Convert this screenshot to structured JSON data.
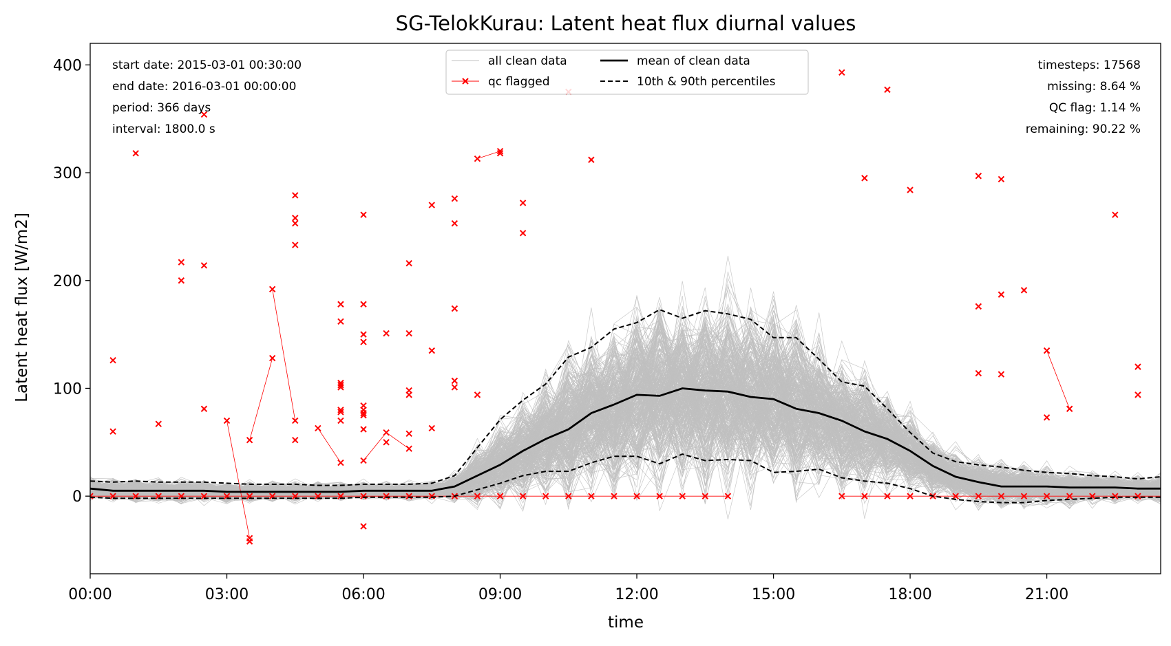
{
  "chart_data": {
    "type": "line",
    "title": "SG-TelokKurau: Latent heat flux diurnal values",
    "xlabel": "time",
    "ylabel": "Latent heat flux [W/m2]",
    "xlim_hours": [
      0,
      23.5
    ],
    "ylim": [
      -72,
      420
    ],
    "x_ticks": [
      {
        "hour": 0,
        "label": "00:00"
      },
      {
        "hour": 3,
        "label": "03:00"
      },
      {
        "hour": 6,
        "label": "06:00"
      },
      {
        "hour": 9,
        "label": "09:00"
      },
      {
        "hour": 12,
        "label": "12:00"
      },
      {
        "hour": 15,
        "label": "15:00"
      },
      {
        "hour": 18,
        "label": "18:00"
      },
      {
        "hour": 21,
        "label": "21:00"
      }
    ],
    "y_ticks": [
      0,
      100,
      200,
      300,
      400
    ],
    "grid": false,
    "legend_placement": "top-center",
    "legend": [
      {
        "label": "all clean data",
        "style": "thin-grey"
      },
      {
        "label": "mean of clean data",
        "style": "solid-black"
      },
      {
        "label": "qc flagged",
        "style": "red-x"
      },
      {
        "label": "10th & 90th percentiles",
        "style": "dashed-black"
      }
    ],
    "info_left": [
      "start date: 2015-03-01 00:30:00",
      "end date: 2016-03-01 00:00:00",
      "period: 366 days",
      "interval: 1800.0 s"
    ],
    "info_right": [
      "timesteps: 17568",
      "missing: 8.64 %",
      "QC flag: 1.14 %",
      "remaining: 90.22 %"
    ],
    "x_hours": [
      0,
      0.5,
      1,
      1.5,
      2,
      2.5,
      3,
      3.5,
      4,
      4.5,
      5,
      5.5,
      6,
      6.5,
      7,
      7.5,
      8,
      8.5,
      9,
      9.5,
      10,
      10.5,
      11,
      11.5,
      12,
      12.5,
      13,
      13.5,
      14,
      14.5,
      15,
      15.5,
      16,
      16.5,
      17,
      17.5,
      18,
      18.5,
      19,
      19.5,
      20,
      20.5,
      21,
      21.5,
      22,
      22.5,
      23,
      23.5
    ],
    "series": [
      {
        "name": "mean of clean data",
        "values": [
          7,
          5,
          5,
          5,
          5,
          5,
          4,
          4,
          4,
          4,
          4,
          4,
          5,
          5,
          5,
          5,
          9,
          19,
          29,
          42,
          53,
          62,
          77,
          85,
          94,
          93,
          100,
          98,
          97,
          92,
          90,
          81,
          77,
          70,
          60,
          53,
          42,
          28,
          18,
          13,
          9,
          9,
          9,
          8,
          8,
          8,
          7,
          7
        ]
      },
      {
        "name": "10th percentile",
        "values": [
          -1,
          -2,
          -2,
          -2,
          -2,
          -2,
          -2,
          -2,
          -2,
          -2,
          -2,
          -2,
          -1,
          -1,
          -1,
          -1,
          0,
          6,
          12,
          19,
          23,
          23,
          31,
          37,
          37,
          30,
          39,
          33,
          34,
          33,
          22,
          23,
          25,
          17,
          14,
          12,
          7,
          0,
          -3,
          -5,
          -6,
          -6,
          -4,
          -3,
          -2,
          -1,
          -1,
          -1
        ]
      },
      {
        "name": "90th percentile",
        "values": [
          14,
          13,
          14,
          13,
          13,
          13,
          12,
          11,
          11,
          11,
          10,
          10,
          11,
          11,
          11,
          12,
          19,
          45,
          71,
          89,
          104,
          129,
          138,
          155,
          161,
          173,
          165,
          172,
          169,
          164,
          147,
          147,
          127,
          106,
          102,
          81,
          59,
          40,
          32,
          29,
          27,
          24,
          22,
          21,
          19,
          18,
          16,
          18
        ]
      }
    ],
    "qc_flagged_points": [
      [
        0,
        0
      ],
      [
        0.5,
        0
      ],
      [
        1,
        0
      ],
      [
        1.5,
        0
      ],
      [
        2,
        0
      ],
      [
        2.5,
        0
      ],
      [
        3,
        0
      ],
      [
        3.5,
        0
      ],
      [
        4,
        0
      ],
      [
        4.5,
        0
      ],
      [
        5,
        0
      ],
      [
        5.5,
        0
      ],
      [
        6,
        0
      ],
      [
        6.5,
        0
      ],
      [
        7,
        0
      ],
      [
        7.5,
        0
      ],
      [
        8,
        0
      ],
      [
        8.5,
        0
      ],
      [
        9,
        0
      ],
      [
        9.5,
        0
      ],
      [
        10,
        0
      ],
      [
        10.5,
        0
      ],
      [
        11,
        0
      ],
      [
        11.5,
        0
      ],
      [
        12,
        0
      ],
      [
        12.5,
        0
      ],
      [
        13,
        0
      ],
      [
        13.5,
        0
      ],
      [
        14,
        0
      ],
      [
        16.5,
        0
      ],
      [
        17,
        0
      ],
      [
        17.5,
        0
      ],
      [
        18,
        0
      ],
      [
        18.5,
        0
      ],
      [
        19,
        0
      ],
      [
        19.5,
        0
      ],
      [
        20,
        0
      ],
      [
        20.5,
        0
      ],
      [
        21,
        0
      ],
      [
        21.5,
        0
      ],
      [
        22,
        0
      ],
      [
        22.5,
        0
      ],
      [
        23,
        0
      ],
      [
        0.5,
        126
      ],
      [
        0.5,
        60
      ],
      [
        1,
        318
      ],
      [
        1.5,
        67
      ],
      [
        2,
        217
      ],
      [
        2,
        200
      ],
      [
        2.5,
        354
      ],
      [
        2.5,
        214
      ],
      [
        2.5,
        81
      ],
      [
        3,
        70
      ],
      [
        3.5,
        52
      ],
      [
        3.5,
        -39
      ],
      [
        3.5,
        -42
      ],
      [
        4,
        192
      ],
      [
        4,
        128
      ],
      [
        4.5,
        279
      ],
      [
        4.5,
        258
      ],
      [
        4.5,
        253
      ],
      [
        4.5,
        233
      ],
      [
        4.5,
        70
      ],
      [
        4.5,
        52
      ],
      [
        5,
        63
      ],
      [
        5.5,
        178
      ],
      [
        5.5,
        162
      ],
      [
        5.5,
        105
      ],
      [
        5.5,
        103
      ],
      [
        5.5,
        101
      ],
      [
        5.5,
        80
      ],
      [
        5.5,
        78
      ],
      [
        5.5,
        70
      ],
      [
        5.5,
        31
      ],
      [
        6,
        261
      ],
      [
        6,
        178
      ],
      [
        6,
        150
      ],
      [
        6,
        143
      ],
      [
        6,
        84
      ],
      [
        6,
        80
      ],
      [
        6,
        77
      ],
      [
        6,
        75
      ],
      [
        6,
        62
      ],
      [
        6,
        33
      ],
      [
        6,
        -28
      ],
      [
        6.5,
        151
      ],
      [
        6.5,
        59
      ],
      [
        6.5,
        50
      ],
      [
        7,
        216
      ],
      [
        7,
        151
      ],
      [
        7,
        98
      ],
      [
        7,
        94
      ],
      [
        7,
        58
      ],
      [
        7,
        44
      ],
      [
        7.5,
        270
      ],
      [
        7.5,
        135
      ],
      [
        7.5,
        63
      ],
      [
        8,
        276
      ],
      [
        8,
        253
      ],
      [
        8,
        174
      ],
      [
        8,
        107
      ],
      [
        8,
        101
      ],
      [
        8.5,
        313
      ],
      [
        8.5,
        94
      ],
      [
        9,
        320
      ],
      [
        9,
        318
      ],
      [
        9.5,
        272
      ],
      [
        9.5,
        244
      ],
      [
        10.5,
        375
      ],
      [
        11,
        312
      ],
      [
        16.5,
        393
      ],
      [
        17,
        295
      ],
      [
        17.5,
        377
      ],
      [
        18,
        284
      ],
      [
        19.5,
        297
      ],
      [
        19.5,
        176
      ],
      [
        19.5,
        114
      ],
      [
        20,
        294
      ],
      [
        20,
        187
      ],
      [
        20,
        113
      ],
      [
        20.5,
        191
      ],
      [
        21,
        135
      ],
      [
        21,
        73
      ],
      [
        21.5,
        81
      ],
      [
        22.5,
        261
      ],
      [
        23,
        120
      ],
      [
        23,
        94
      ]
    ],
    "qc_flagged_segments": [
      [
        [
          3,
          70
        ],
        [
          3.5,
          -39
        ]
      ],
      [
        [
          3.5,
          52
        ],
        [
          4,
          128
        ]
      ],
      [
        [
          4,
          192
        ],
        [
          4.5,
          70
        ]
      ],
      [
        [
          5,
          63
        ],
        [
          5.5,
          31
        ]
      ],
      [
        [
          6,
          33
        ],
        [
          6.5,
          59
        ]
      ],
      [
        [
          6.5,
          59
        ],
        [
          7,
          44
        ]
      ],
      [
        [
          8.5,
          313
        ],
        [
          9,
          320
        ]
      ],
      [
        [
          21,
          135
        ],
        [
          21.5,
          81
        ]
      ]
    ],
    "clean_data_note_count": 366,
    "colors": {
      "clean": "#c0c0c0",
      "mean": "#000000",
      "percentile": "#000000",
      "qc": "#ff0000",
      "background": "#ffffff"
    }
  }
}
